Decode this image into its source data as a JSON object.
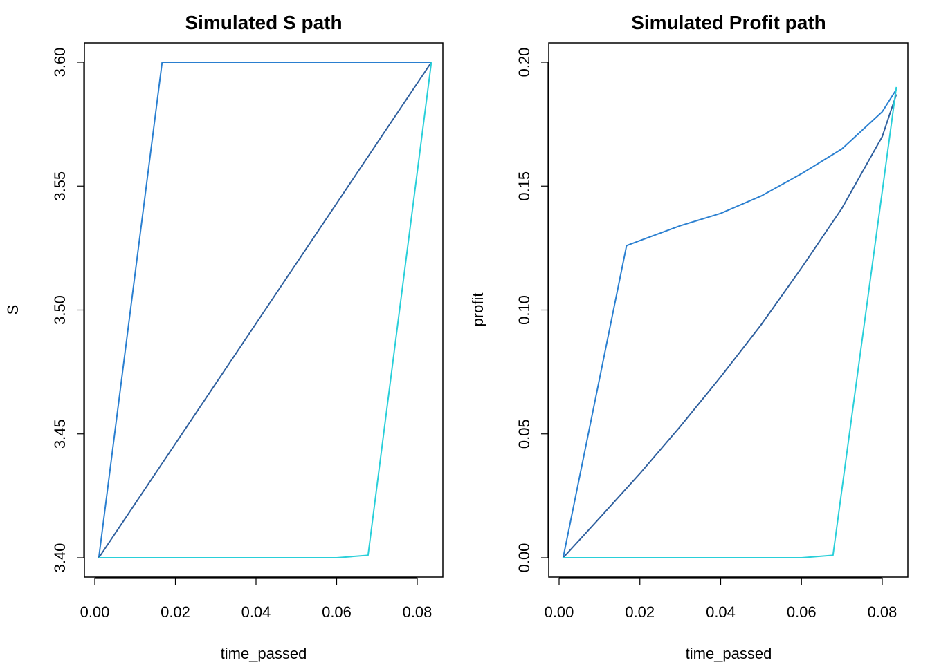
{
  "chart_data": [
    {
      "type": "line",
      "title": "Simulated S path",
      "xlabel": "time_passed",
      "ylabel": "S",
      "xlim": [
        0.0,
        0.085
      ],
      "ylim": [
        3.4,
        3.6
      ],
      "xticks": [
        0.0,
        0.02,
        0.04,
        0.06,
        0.08
      ],
      "xtick_labels": [
        "0.00",
        "0.02",
        "0.04",
        "0.06",
        "0.08"
      ],
      "yticks": [
        3.4,
        3.45,
        3.5,
        3.55,
        3.6
      ],
      "ytick_labels": [
        "3.40",
        "3.45",
        "3.50",
        "3.55",
        "3.60"
      ],
      "grid": false,
      "series": [
        {
          "color": "#2a7fd0",
          "description": "jumps early then stays near 3.60",
          "x": [
            0.001,
            0.0167,
            0.025,
            0.033,
            0.042,
            0.05,
            0.058,
            0.067,
            0.075,
            0.0835
          ],
          "y": [
            3.4,
            3.6,
            3.6,
            3.6,
            3.6,
            3.6,
            3.6,
            3.6,
            3.6,
            3.6
          ]
        },
        {
          "color": "#2e5f9e",
          "x": [
            0.001,
            0.0835
          ],
          "y": [
            3.4,
            3.6
          ]
        },
        {
          "color": "#29cfd9",
          "x": [
            0.001,
            0.01,
            0.02,
            0.03,
            0.04,
            0.05,
            0.06,
            0.0678,
            0.0835
          ],
          "y": [
            3.4,
            3.4,
            3.4,
            3.4,
            3.4,
            3.4,
            3.4,
            3.401,
            3.6
          ]
        }
      ]
    },
    {
      "type": "line",
      "title": "Simulated Profit path",
      "xlabel": "time_passed",
      "ylabel": "profit",
      "xlim": [
        0.0,
        0.085
      ],
      "ylim": [
        0.0,
        0.2
      ],
      "xticks": [
        0.0,
        0.02,
        0.04,
        0.06,
        0.08
      ],
      "xtick_labels": [
        "0.00",
        "0.02",
        "0.04",
        "0.06",
        "0.08"
      ],
      "yticks": [
        0.0,
        0.05,
        0.1,
        0.15,
        0.2
      ],
      "ytick_labels": [
        "0.00",
        "0.05",
        "0.10",
        "0.15",
        "0.20"
      ],
      "grid": false,
      "series": [
        {
          "color": "#2a7fd0",
          "x": [
            0.001,
            0.0167,
            0.02,
            0.03,
            0.04,
            0.05,
            0.06,
            0.07,
            0.08,
            0.0835
          ],
          "y": [
            0.0,
            0.126,
            0.128,
            0.134,
            0.139,
            0.146,
            0.155,
            0.165,
            0.18,
            0.189
          ]
        },
        {
          "color": "#2e5f9e",
          "x": [
            0.001,
            0.01,
            0.02,
            0.03,
            0.04,
            0.05,
            0.06,
            0.07,
            0.08,
            0.0835
          ],
          "y": [
            0.0,
            0.016,
            0.034,
            0.053,
            0.073,
            0.094,
            0.117,
            0.141,
            0.17,
            0.187
          ]
        },
        {
          "color": "#29cfd9",
          "x": [
            0.001,
            0.01,
            0.02,
            0.03,
            0.04,
            0.05,
            0.06,
            0.0678,
            0.0835
          ],
          "y": [
            0.0,
            0.0,
            0.0,
            0.0,
            0.0,
            0.0,
            0.0,
            0.001,
            0.19
          ]
        }
      ]
    }
  ]
}
